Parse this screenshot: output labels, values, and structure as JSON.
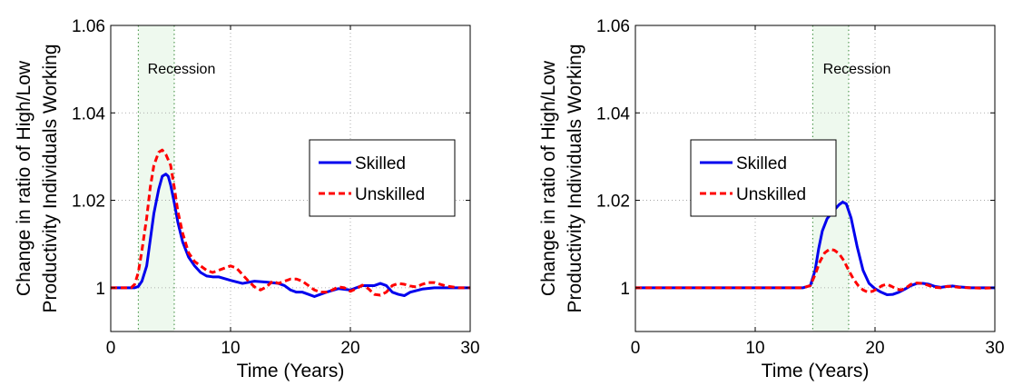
{
  "chart_data": [
    {
      "type": "line",
      "xlabel": "Time (Years)",
      "ylabel": [
        "Change in ratio of High/Low",
        "Productivity Individuals Working"
      ],
      "xlim": [
        0,
        30
      ],
      "ylim": [
        0.99,
        1.06
      ],
      "xticks": [
        0,
        10,
        20,
        30
      ],
      "yticks": [
        1,
        1.02,
        1.04,
        1.06
      ],
      "ytick_labels": [
        "1",
        "1.02",
        "1.04",
        "1.06"
      ],
      "grid": true,
      "legend": "right",
      "recession": {
        "label": "Recession",
        "start": 2.3,
        "end": 5.3
      },
      "series": [
        {
          "name": "Skilled",
          "color": "#0000ee",
          "style": "solid",
          "x": [
            0,
            1,
            2,
            2.3,
            2.6,
            3,
            3.3,
            3.6,
            4,
            4.3,
            4.6,
            4.8,
            5,
            5.3,
            5.6,
            6,
            6.5,
            7,
            7.5,
            8,
            8.5,
            9,
            10,
            11,
            12,
            13,
            14,
            14.5,
            15,
            15.5,
            16,
            16.5,
            17,
            17.5,
            18,
            19,
            20,
            21,
            22,
            22.5,
            23,
            23.5,
            24,
            24.5,
            25,
            26,
            27,
            28,
            29,
            30
          ],
          "values": [
            1,
            1,
            1,
            1.0003,
            1.0015,
            1.005,
            1.011,
            1.017,
            1.0225,
            1.0255,
            1.026,
            1.0255,
            1.0235,
            1.0195,
            1.015,
            1.0105,
            1.007,
            1.005,
            1.0035,
            1.0027,
            1.0025,
            1.0025,
            1.0017,
            1.001,
            1.0015,
            1.0013,
            1.001,
            1.0005,
            0.9995,
            0.999,
            0.999,
            0.9985,
            0.998,
            0.9985,
            0.999,
            0.9998,
            0.9995,
            1.0005,
            1.0005,
            1.001,
            1.0005,
            0.999,
            0.9985,
            0.9982,
            0.999,
            0.9997,
            1,
            1,
            1,
            1
          ]
        },
        {
          "name": "Unskilled",
          "color": "#ff0000",
          "style": "dashed",
          "x": [
            0,
            1,
            1.7,
            2,
            2.3,
            2.6,
            3,
            3.3,
            3.6,
            4,
            4.3,
            4.6,
            5,
            5.3,
            5.6,
            6,
            6.5,
            7,
            7.5,
            8,
            8.5,
            9,
            9.5,
            10,
            10.5,
            11,
            11.5,
            12,
            12.5,
            13,
            13.5,
            14,
            14.5,
            15,
            15.5,
            16,
            16.5,
            17,
            17.5,
            18,
            18.5,
            19,
            19.5,
            20,
            20.5,
            21,
            21.5,
            22,
            22.5,
            23,
            23.5,
            24,
            24.5,
            25,
            25.5,
            26,
            26.5,
            27,
            27.5,
            28,
            29,
            30
          ],
          "values": [
            1,
            1,
            1,
            1.0008,
            1.0035,
            1.0085,
            1.016,
            1.023,
            1.028,
            1.031,
            1.0315,
            1.0305,
            1.028,
            1.023,
            1.0175,
            1.0125,
            1.008,
            1.006,
            1.005,
            1.004,
            1.0035,
            1.004,
            1.0045,
            1.005,
            1.0045,
            1.003,
            1.0015,
            1.0002,
            0.9995,
            1.0002,
            1.0015,
            1.001,
            1.0015,
            1.002,
            1.002,
            1.0015,
            1.0005,
            0.9995,
            0.999,
            0.999,
            0.9995,
            1.0002,
            1,
            0.9992,
            0.9998,
            1.0006,
            0.9998,
            0.9985,
            0.9983,
            0.999,
            1.0005,
            1.001,
            1.0008,
            1.0004,
            1.0002,
            1.0008,
            1.0012,
            1.0012,
            1.0008,
            1.0004,
            1,
            1
          ]
        }
      ]
    },
    {
      "type": "line",
      "xlabel": "Time (Years)",
      "ylabel": [
        "Change in ratio of High/Low",
        "Productivity Individuals Working"
      ],
      "xlim": [
        0,
        30
      ],
      "ylim": [
        0.99,
        1.06
      ],
      "xticks": [
        0,
        10,
        20,
        30
      ],
      "yticks": [
        1,
        1.02,
        1.04,
        1.06
      ],
      "ytick_labels": [
        "1",
        "1.02",
        "1.04",
        "1.06"
      ],
      "grid": true,
      "legend": "right",
      "recession": {
        "label": "Recession",
        "start": 14.8,
        "end": 17.8
      },
      "series": [
        {
          "name": "Skilled",
          "color": "#0000ee",
          "style": "solid",
          "x": [
            0,
            5,
            10,
            14,
            14.6,
            15,
            15.3,
            15.6,
            16,
            16.5,
            17,
            17.3,
            17.6,
            18,
            18.5,
            19,
            19.5,
            20,
            20.5,
            21,
            21.5,
            22,
            22.5,
            23,
            23.5,
            24,
            24.5,
            25,
            25.5,
            26,
            26.5,
            27,
            28,
            29,
            30
          ],
          "values": [
            1,
            1,
            1,
            1,
            1.0005,
            1.004,
            1.009,
            1.013,
            1.0158,
            1.0175,
            1.019,
            1.0196,
            1.0192,
            1.016,
            1.0095,
            1.004,
            1.001,
            0.9998,
            0.999,
            0.9984,
            0.9985,
            0.999,
            0.9997,
            1.0005,
            1.001,
            1.001,
            1.0008,
            1.0003,
            1.0001,
            1.0003,
            1.0004,
            1.0002,
            1,
            1,
            1
          ]
        },
        {
          "name": "Unskilled",
          "color": "#ff0000",
          "style": "dashed",
          "x": [
            0,
            5,
            10,
            14,
            14.6,
            15,
            15.4,
            15.8,
            16.2,
            16.6,
            17,
            17.4,
            17.8,
            18.2,
            18.6,
            19,
            19.4,
            19.8,
            20.2,
            20.6,
            21,
            21.4,
            21.8,
            22.2,
            22.6,
            23,
            23.5,
            24,
            24.5,
            25,
            25.5,
            26,
            26.5,
            27,
            28,
            29,
            30
          ],
          "values": [
            1,
            1,
            1,
            1,
            1.0005,
            1.003,
            1.006,
            1.008,
            1.0088,
            1.0086,
            1.0078,
            1.0062,
            1.004,
            1.002,
            1.0005,
            0.9995,
            0.999,
            0.9992,
            0.9998,
            1.0005,
            1.0008,
            1.0003,
            0.9997,
            0.9995,
            1,
            1.0008,
            1.0011,
            1.001,
            1.0005,
            1.0001,
            1,
            1.0003,
            1.0003,
            1.0001,
            1,
            0.9999,
            1
          ]
        }
      ]
    }
  ]
}
